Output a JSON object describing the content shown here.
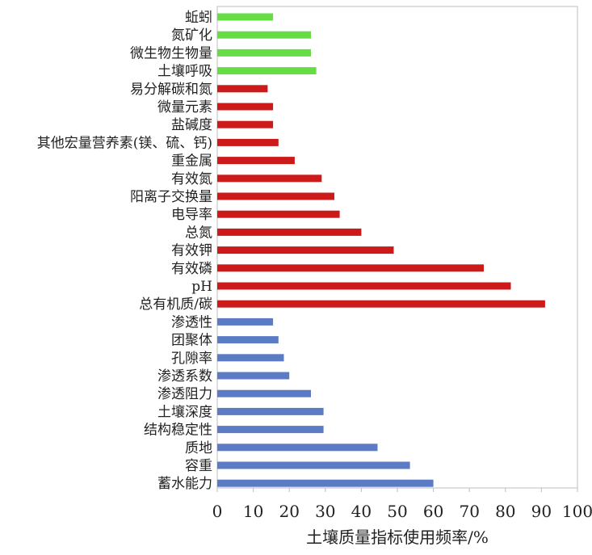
{
  "chart_data": {
    "type": "bar",
    "orientation": "horizontal",
    "title": "",
    "xlabel": "土壤质量指标使用频率/%",
    "ylabel": "",
    "xlim": [
      0,
      100
    ],
    "xticks": [
      0,
      10,
      20,
      30,
      40,
      50,
      60,
      70,
      80,
      90,
      100
    ],
    "grid": false,
    "legend": "none",
    "categories": [
      "蚯蚓",
      "氮矿化",
      "微生物生物量",
      "土壤呼吸",
      "易分解碳和氮",
      "微量元素",
      "盐碱度",
      "其他宏量营养素(镁、硫、钙)",
      "重金属",
      "有效氮",
      "阳离子交换量",
      "电导率",
      "总氮",
      "有效钾",
      "有效磷",
      "pH",
      "总有机质/碳",
      "渗透性",
      "团聚体",
      "孔隙率",
      "渗透系数",
      "渗透阻力",
      "土壤深度",
      "结构稳定性",
      "质地",
      "容重",
      "蓄水能力"
    ],
    "values": [
      15.5,
      26,
      26,
      27.5,
      14,
      15.5,
      15.5,
      17,
      21.5,
      29,
      32.5,
      34,
      40,
      49,
      74,
      81.5,
      91,
      15.5,
      17,
      18.5,
      20,
      26,
      29.5,
      29.5,
      44.5,
      53.5,
      60
    ],
    "bar_colors": [
      "#66dd44",
      "#66dd44",
      "#66dd44",
      "#66dd44",
      "#cc1a1a",
      "#cc1a1a",
      "#cc1a1a",
      "#cc1a1a",
      "#cc1a1a",
      "#cc1a1a",
      "#cc1a1a",
      "#cc1a1a",
      "#cc1a1a",
      "#cc1a1a",
      "#cc1a1a",
      "#cc1a1a",
      "#cc1a1a",
      "#5b7cc4",
      "#5b7cc4",
      "#5b7cc4",
      "#5b7cc4",
      "#5b7cc4",
      "#5b7cc4",
      "#5b7cc4",
      "#5b7cc4",
      "#5b7cc4",
      "#5b7cc4"
    ]
  }
}
